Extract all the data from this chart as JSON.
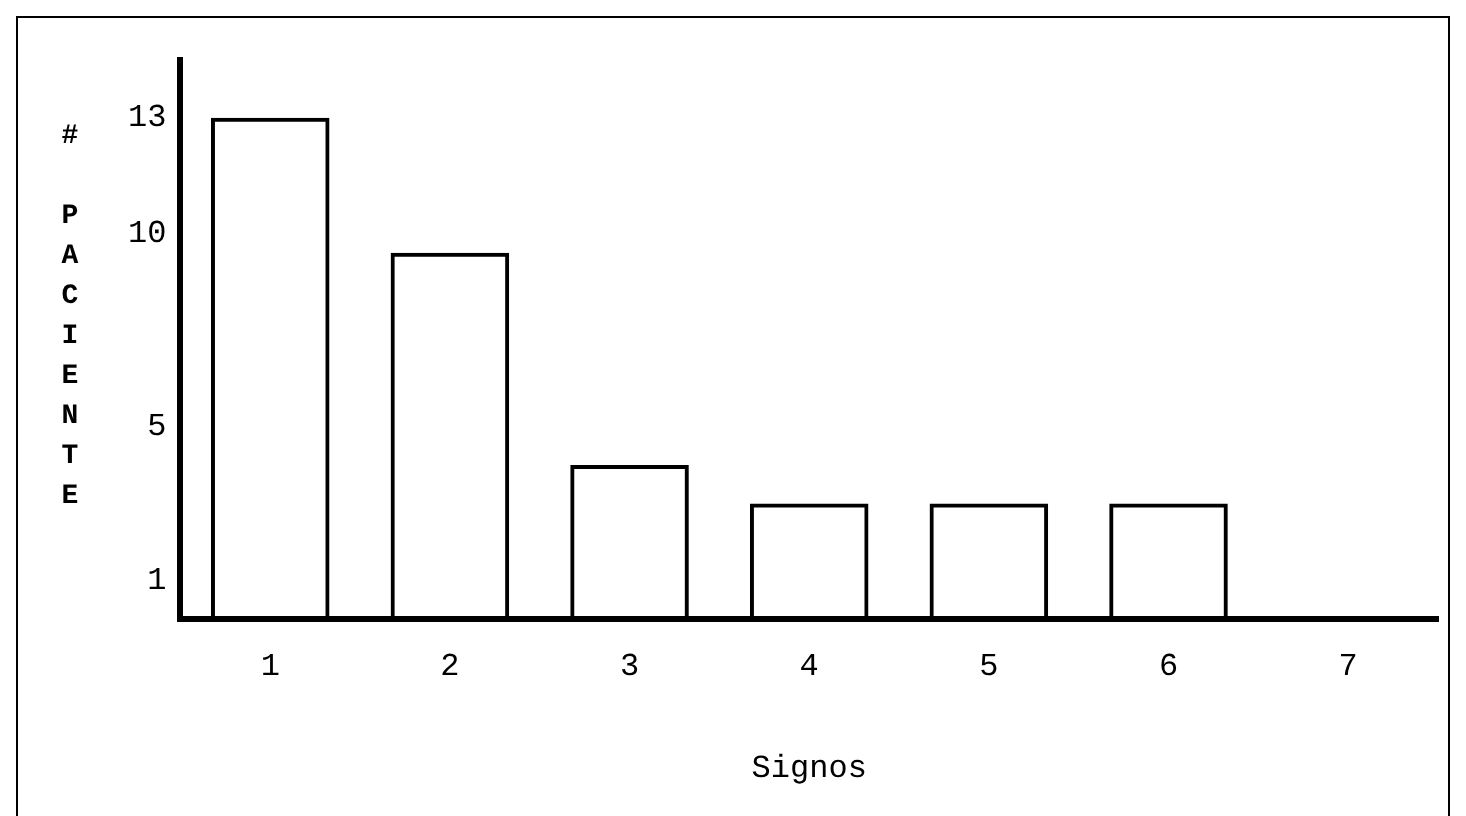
{
  "chart_data": {
    "type": "bar",
    "xlabel": "Signos",
    "ylabel": "# PACIENTE",
    "categories": [
      "1",
      "2",
      "3",
      "4",
      "5",
      "6",
      "7"
    ],
    "values": [
      13,
      9.5,
      4,
      3,
      3,
      3,
      0
    ],
    "color": "#000000",
    "ylim": [
      0,
      14.5
    ],
    "yticks": [
      1,
      5,
      10,
      13
    ],
    "grid": false,
    "legend": false
  }
}
